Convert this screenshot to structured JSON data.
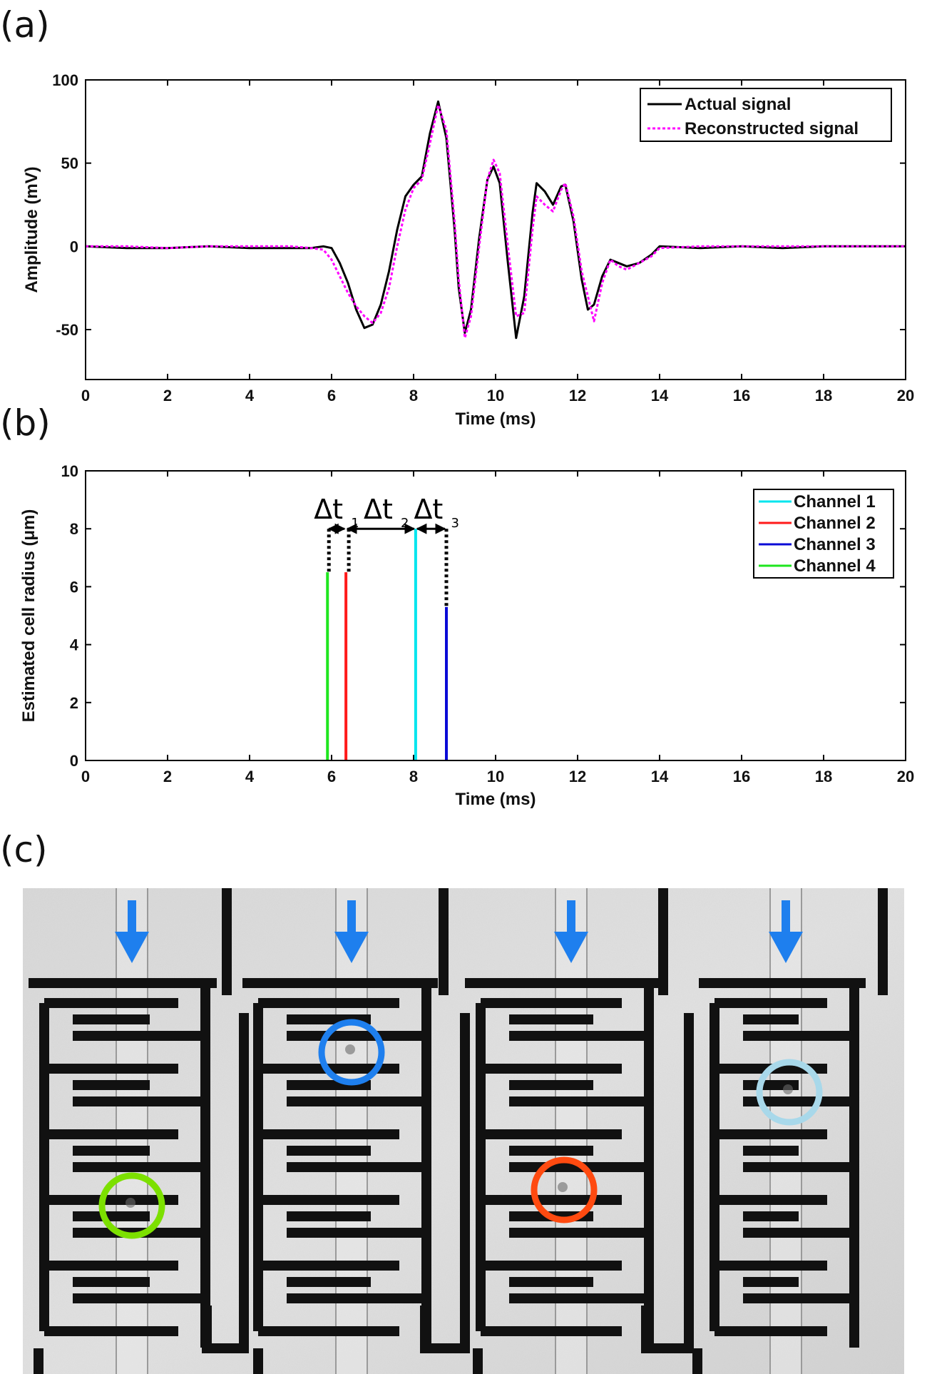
{
  "panel_labels": {
    "a": "(a)",
    "b": "(b)",
    "c": "(c)"
  },
  "chart_data": [
    {
      "type": "line",
      "panel": "a",
      "title": "",
      "xlabel": "Time (ms)",
      "ylabel": "Amplitude (mV)",
      "xlim": [
        0,
        20
      ],
      "ylim": [
        -80,
        100
      ],
      "xticks": [
        "0",
        "2",
        "4",
        "6",
        "8",
        "10",
        "12",
        "14",
        "16",
        "18",
        "20"
      ],
      "yticks": [
        "100",
        "50",
        "0",
        "-50"
      ],
      "grid": false,
      "legend": "top-right",
      "series": [
        {
          "name": "Actual signal",
          "color": "#000000",
          "style": "solid",
          "x": [
            0,
            1,
            2,
            3,
            4,
            5,
            5.5,
            5.8,
            6.0,
            6.2,
            6.4,
            6.6,
            6.8,
            7.0,
            7.2,
            7.4,
            7.6,
            7.8,
            8.0,
            8.2,
            8.4,
            8.6,
            8.8,
            9.0,
            9.1,
            9.25,
            9.4,
            9.6,
            9.8,
            9.95,
            10.1,
            10.3,
            10.5,
            10.7,
            10.9,
            11.0,
            11.2,
            11.4,
            11.6,
            11.7,
            11.9,
            12.1,
            12.25,
            12.4,
            12.6,
            12.8,
            13.0,
            13.2,
            13.5,
            13.8,
            14.0,
            15,
            16,
            17,
            18,
            19,
            20
          ],
          "y": [
            0,
            -1,
            -1,
            0,
            -1,
            -1,
            -1,
            0,
            -1,
            -10,
            -22,
            -38,
            -49,
            -47,
            -35,
            -15,
            10,
            30,
            37,
            42,
            68,
            87,
            65,
            10,
            -25,
            -52,
            -38,
            5,
            40,
            48,
            38,
            -10,
            -55,
            -30,
            20,
            38,
            33,
            25,
            36,
            37,
            15,
            -20,
            -38,
            -35,
            -18,
            -8,
            -10,
            -12,
            -10,
            -5,
            0,
            -1,
            0,
            -1,
            0,
            0,
            0
          ]
        },
        {
          "name": "Reconstructed signal",
          "color": "#ff00ff",
          "style": "dashed",
          "x": [
            0,
            1,
            2,
            3,
            4,
            5,
            5.5,
            5.8,
            6.0,
            6.2,
            6.4,
            6.6,
            6.8,
            7.0,
            7.2,
            7.4,
            7.6,
            7.8,
            8.0,
            8.2,
            8.4,
            8.6,
            8.8,
            9.0,
            9.1,
            9.25,
            9.4,
            9.6,
            9.8,
            9.95,
            10.1,
            10.3,
            10.5,
            10.7,
            10.9,
            11.0,
            11.2,
            11.4,
            11.6,
            11.7,
            11.9,
            12.1,
            12.25,
            12.4,
            12.6,
            12.8,
            13.0,
            13.2,
            13.5,
            13.8,
            14.0,
            15,
            16,
            17,
            18,
            19,
            20
          ],
          "y": [
            0,
            0,
            -1,
            0,
            0,
            0,
            -1,
            -2,
            -8,
            -18,
            -28,
            -36,
            -42,
            -46,
            -40,
            -25,
            0,
            22,
            35,
            40,
            62,
            85,
            70,
            15,
            -20,
            -55,
            -42,
            0,
            40,
            52,
            44,
            0,
            -42,
            -40,
            10,
            30,
            25,
            21,
            34,
            38,
            18,
            -15,
            -30,
            -45,
            -22,
            -8,
            -12,
            -14,
            -10,
            -6,
            -1,
            0,
            0,
            0,
            0,
            0,
            0
          ]
        }
      ]
    },
    {
      "type": "bar",
      "panel": "b",
      "title": "",
      "xlabel": "Time (ms)",
      "ylabel": "Estimated cell radius (μm)",
      "xlim": [
        0,
        20
      ],
      "ylim": [
        0,
        10
      ],
      "xticks": [
        "0",
        "2",
        "4",
        "6",
        "8",
        "10",
        "12",
        "14",
        "16",
        "18",
        "20"
      ],
      "yticks": [
        "10",
        "8",
        "6",
        "4",
        "2",
        "0"
      ],
      "grid": false,
      "legend": "top-right",
      "series": [
        {
          "name": "Channel 1",
          "color": "#00e5ee",
          "x": 8.05,
          "value": 8.0
        },
        {
          "name": "Channel 2",
          "color": "#ff1a1a",
          "x": 6.35,
          "value": 6.5
        },
        {
          "name": "Channel 3",
          "color": "#0a0ad6",
          "x": 8.8,
          "value": 5.3
        },
        {
          "name": "Channel 4",
          "color": "#1ee61e",
          "x": 5.9,
          "value": 6.5
        }
      ],
      "annotations": [
        {
          "label": "Δt",
          "sub": "1",
          "from": 5.9,
          "to": 6.35
        },
        {
          "label": "Δt",
          "sub": "2",
          "from": 6.35,
          "to": 8.05
        },
        {
          "label": "Δt",
          "sub": "3",
          "from": 8.05,
          "to": 8.8
        }
      ]
    }
  ],
  "micrograph": {
    "arrow_color": "#1e7fee",
    "circles": [
      {
        "channel": "Channel 4",
        "color": "#7ce000"
      },
      {
        "channel": "Channel 3",
        "color": "#1e7fee"
      },
      {
        "channel": "Channel 2",
        "color": "#ff4a10"
      },
      {
        "channel": "Channel 1",
        "color": "#a8d8ea"
      }
    ]
  }
}
